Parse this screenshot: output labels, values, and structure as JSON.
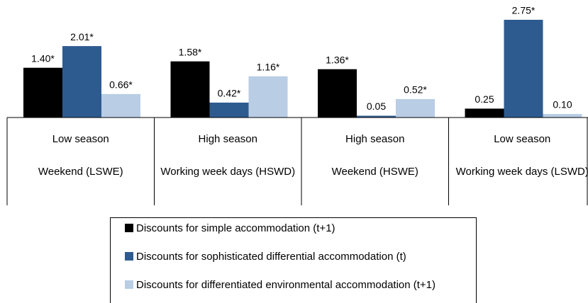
{
  "chart_data": {
    "type": "bar",
    "categories": [
      [
        "Low season",
        "Weekend (LSWE)"
      ],
      [
        "High season",
        "Working week days (HSWD)"
      ],
      [
        "High season",
        "Weekend (HSWE)"
      ],
      [
        "Low season",
        "Working week days (LSWD)"
      ]
    ],
    "series": [
      {
        "name": "Discounts for simple accommodation (t+1)",
        "color": "#000000",
        "values": [
          1.4,
          1.58,
          1.36,
          0.25
        ],
        "value_labels": [
          "1.40*",
          "1.58*",
          "1.36*",
          "0.25"
        ]
      },
      {
        "name": "Discounts for sophisticated differential accommodation (t)",
        "color": "#2e5b8f",
        "values": [
          2.01,
          0.42,
          0.05,
          2.75
        ],
        "value_labels": [
          "2.01*",
          "0.42*",
          "0.05",
          "2.75*"
        ]
      },
      {
        "name": "Discounts for differentiated environmental accommodation (t+1)",
        "color": "#b9cde5",
        "values": [
          0.66,
          1.16,
          0.52,
          0.1
        ],
        "value_labels": [
          "0.66*",
          "1.16*",
          "0.52*",
          "0.10"
        ]
      }
    ]
  }
}
